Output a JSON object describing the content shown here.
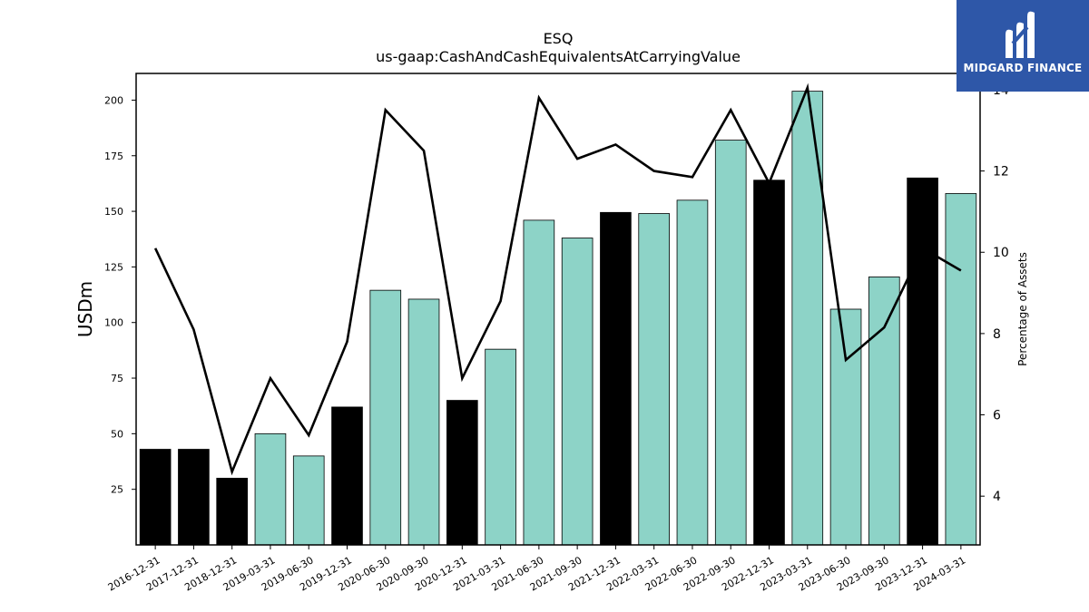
{
  "chart_data": {
    "type": "bar",
    "title": "ESQ",
    "subtitle": "us-gaap:CashAndCashEquivalentsAtCarryingValue",
    "ylabel": "USDm",
    "y2label": "Percentage of Assets",
    "categories": [
      "2016-12-31",
      "2017-12-31",
      "2018-12-31",
      "2019-03-31",
      "2019-06-30",
      "2019-12-31",
      "2020-06-30",
      "2020-09-30",
      "2020-12-31",
      "2021-03-31",
      "2021-06-30",
      "2021-09-30",
      "2021-12-31",
      "2022-03-31",
      "2022-06-30",
      "2022-09-30",
      "2022-12-31",
      "2023-03-31",
      "2023-06-30",
      "2023-09-30",
      "2023-12-31",
      "2024-03-31"
    ],
    "series": [
      {
        "values": [
          43,
          43,
          30,
          50,
          40,
          62,
          114.5,
          110.5,
          65,
          88,
          146,
          138,
          149.5,
          149,
          155,
          182,
          164,
          204,
          106,
          120.5,
          165,
          158
        ],
        "highlight": [
          true,
          true,
          true,
          false,
          false,
          true,
          false,
          false,
          true,
          false,
          false,
          false,
          true,
          false,
          false,
          false,
          true,
          false,
          false,
          false,
          true,
          false
        ]
      },
      {
        "axis": "right",
        "type": "line",
        "values": [
          10.1,
          8.1,
          4.6,
          6.9,
          5.5,
          7.8,
          13.5,
          12.5,
          6.9,
          8.8,
          13.8,
          12.3,
          12.65,
          12.0,
          11.85,
          13.5,
          11.7,
          14.05,
          7.35,
          8.15,
          10.1,
          9.55
        ]
      }
    ],
    "yticks": [
      "25",
      "50",
      "75",
      "100",
      "125",
      "150",
      "175",
      "200"
    ],
    "ylim": [
      0,
      212
    ],
    "y2ticks": [
      "4",
      "6",
      "8",
      "10",
      "12",
      "14"
    ],
    "y2lim": [
      2.8,
      14.4
    ],
    "colors": {
      "highlight": "#000000",
      "normal": "#8dd3c7",
      "line": "#000000"
    }
  },
  "logo": {
    "text": "MIDGARD FINANCE",
    "background": "#2e57a8"
  }
}
